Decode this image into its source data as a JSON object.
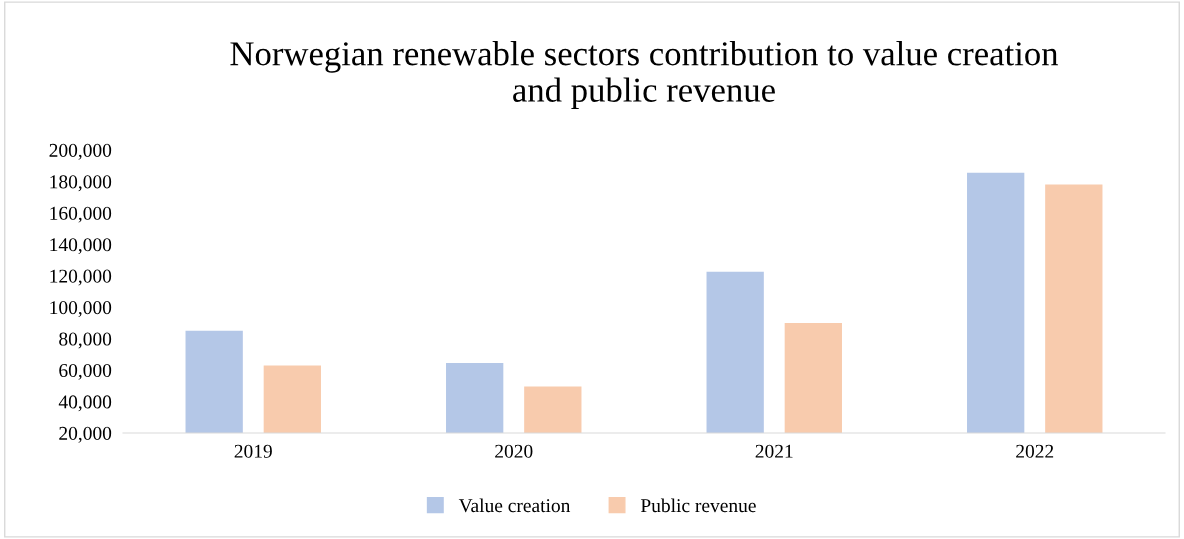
{
  "chart_data": {
    "type": "bar",
    "title": "Norwegian renewable sectors contribution to value creation\nand public revenue",
    "categories": [
      "2019",
      "2020",
      "2021",
      "2022"
    ],
    "series": [
      {
        "name": "Value creation",
        "color": "#b4c7e7",
        "values": [
          85000,
          64500,
          122500,
          185500
        ]
      },
      {
        "name": "Public revenue",
        "color": "#f8cbad",
        "values": [
          63000,
          49500,
          90000,
          178000
        ]
      }
    ],
    "ylim": [
      20000,
      200000
    ],
    "yticks": [
      {
        "value": 20000,
        "label": "20,000"
      },
      {
        "value": 40000,
        "label": "40,000"
      },
      {
        "value": 60000,
        "label": "60,000"
      },
      {
        "value": 80000,
        "label": "80,000"
      },
      {
        "value": 100000,
        "label": "100,000"
      },
      {
        "value": 120000,
        "label": "120,000"
      },
      {
        "value": 140000,
        "label": "140,000"
      },
      {
        "value": 160000,
        "label": "160,000"
      },
      {
        "value": 180000,
        "label": "180,000"
      },
      {
        "value": 200000,
        "label": "200,000"
      }
    ],
    "grid": false,
    "legend": "bottom"
  }
}
